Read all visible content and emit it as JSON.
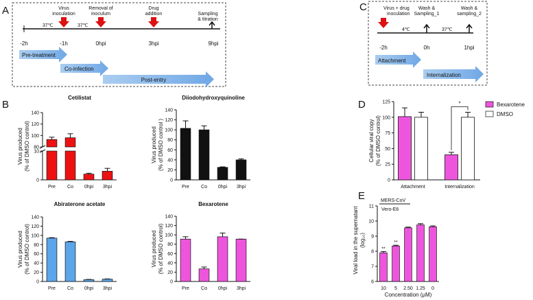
{
  "panel_letters": {
    "A": "A",
    "B": "B",
    "C": "C",
    "D": "D",
    "E": "E"
  },
  "timeline_A": {
    "temps": [
      "37℃",
      "37℃"
    ],
    "events": [
      {
        "line1": "Virus",
        "line2": "inoculation"
      },
      {
        "line1": "Removal of",
        "line2": "inoculum"
      },
      {
        "line1": "Drug",
        "line2": "addition"
      },
      {
        "line1": "Sampling",
        "line2": "& titration"
      }
    ],
    "ticks": [
      "-2h",
      "-1h",
      "0hpi",
      "3hpi",
      "9hpi"
    ],
    "phases": [
      "Pre-treatment",
      "Co-infection",
      "Post-entry"
    ]
  },
  "timeline_C": {
    "events": [
      {
        "line1": "Virus + drug",
        "line2": "inoculation"
      },
      {
        "line1": "Wash &",
        "line2": "Sampling_1"
      },
      {
        "line1": "Wash &",
        "line2": "sampling_2"
      }
    ],
    "temps": [
      "4℃",
      "37℃"
    ],
    "ticks": [
      "-2h",
      "0h",
      "1hpi"
    ],
    "phases": [
      "Attachment",
      "Internalization"
    ]
  },
  "colors": {
    "red": "#ee1111",
    "black": "#111111",
    "blue": "#5ba6ea",
    "magenta": "#ee55dd",
    "white": "#ffffff"
  },
  "chart_data": [
    {
      "id": "cetilistat",
      "type": "bar",
      "title": "Cetilistat",
      "categories": [
        "Pre",
        "Co",
        "0hpi",
        "3hpi"
      ],
      "values": [
        93,
        96,
        2,
        3
      ],
      "errors": [
        4,
        7,
        0.3,
        1
      ],
      "color": "#ee1111",
      "ylabel_lines": [
        "Virus produced",
        "(% of DMSO control)"
      ],
      "broken_axis": true,
      "upper_ticks": [
        "80",
        "100",
        "120",
        "140"
      ],
      "lower_ticks": [
        "0",
        "10"
      ],
      "ylim": [
        0,
        140
      ]
    },
    {
      "id": "diiodo",
      "type": "bar",
      "title": "Diiodohydroxyquinoline",
      "categories": [
        "Pre",
        "Co",
        "0hpi",
        "3hpi"
      ],
      "values": [
        103,
        100,
        25,
        40
      ],
      "errors": [
        15,
        8,
        1,
        2
      ],
      "color": "#111111",
      "ylabel_lines": [
        "Virus produced",
        "(% of DMSO control )"
      ],
      "ylim": [
        0,
        140
      ],
      "ticks": [
        "0",
        "20",
        "40",
        "60",
        "80",
        "100",
        "120",
        "140"
      ]
    },
    {
      "id": "abiraterone",
      "type": "bar",
      "title": "Abiraterone acetate",
      "categories": [
        "Pre",
        "Co",
        "0hpi",
        "3hpi"
      ],
      "values": [
        94,
        86,
        4,
        5
      ],
      "errors": [
        1,
        1,
        0.5,
        0.5
      ],
      "color": "#5ba6ea",
      "ylabel_lines": [
        "Virus produced",
        "(% of DMSO control)"
      ],
      "ylim": [
        0,
        140
      ],
      "ticks": [
        "0",
        "20",
        "40",
        "60",
        "80",
        "100",
        "120",
        "140"
      ]
    },
    {
      "id": "bexarotene_b",
      "type": "bar",
      "title": "Bexarotene",
      "categories": [
        "Pre",
        "Co",
        "0hpi",
        "3hpi"
      ],
      "values": [
        91,
        27,
        96,
        91
      ],
      "errors": [
        5,
        4,
        8,
        0
      ],
      "color": "#ee55dd",
      "ylabel_lines": [
        "Virus produced",
        "(% of DMSO control)"
      ],
      "ylim": [
        0,
        140
      ],
      "ticks": [
        "0",
        "20",
        "40",
        "60",
        "80",
        "100",
        "120",
        "140"
      ]
    },
    {
      "id": "panel_d",
      "type": "bar",
      "categories": [
        "Attachment",
        "Internalization"
      ],
      "series": [
        {
          "name": "Bexarotene",
          "values": [
            101,
            40
          ],
          "errors": [
            14,
            4
          ],
          "color": "#ee55dd"
        },
        {
          "name": "DMSO",
          "values": [
            100,
            100
          ],
          "errors": [
            8,
            8
          ],
          "color": "#ffffff"
        }
      ],
      "ylabel_lines": [
        "Cellular viral copy",
        "(% of DMSO control)"
      ],
      "ylim": [
        0,
        125
      ],
      "ticks": [
        "0",
        "25",
        "50",
        "75",
        "100",
        "125"
      ],
      "significance": "*"
    },
    {
      "id": "panel_e",
      "type": "bar",
      "categories": [
        "10",
        "5",
        "2.50",
        "1.25",
        "0"
      ],
      "values": [
        7.9,
        8.35,
        9.55,
        9.75,
        9.62
      ],
      "errors": [
        0.08,
        0.05,
        0.05,
        0.08,
        0.06
      ],
      "color": "#ee55dd",
      "ylim": [
        6,
        11
      ],
      "ticks": [
        "6",
        "7",
        "8",
        "9",
        "10",
        "11"
      ],
      "ylabel_lines": [
        "Viral load in the supernatant",
        "(log₁₀)"
      ],
      "xlabel": "Concentration (μM)",
      "virus": "MERS-CoV",
      "cell": "Vero-E6",
      "significance": [
        "**",
        "**",
        "",
        "",
        ""
      ]
    }
  ]
}
